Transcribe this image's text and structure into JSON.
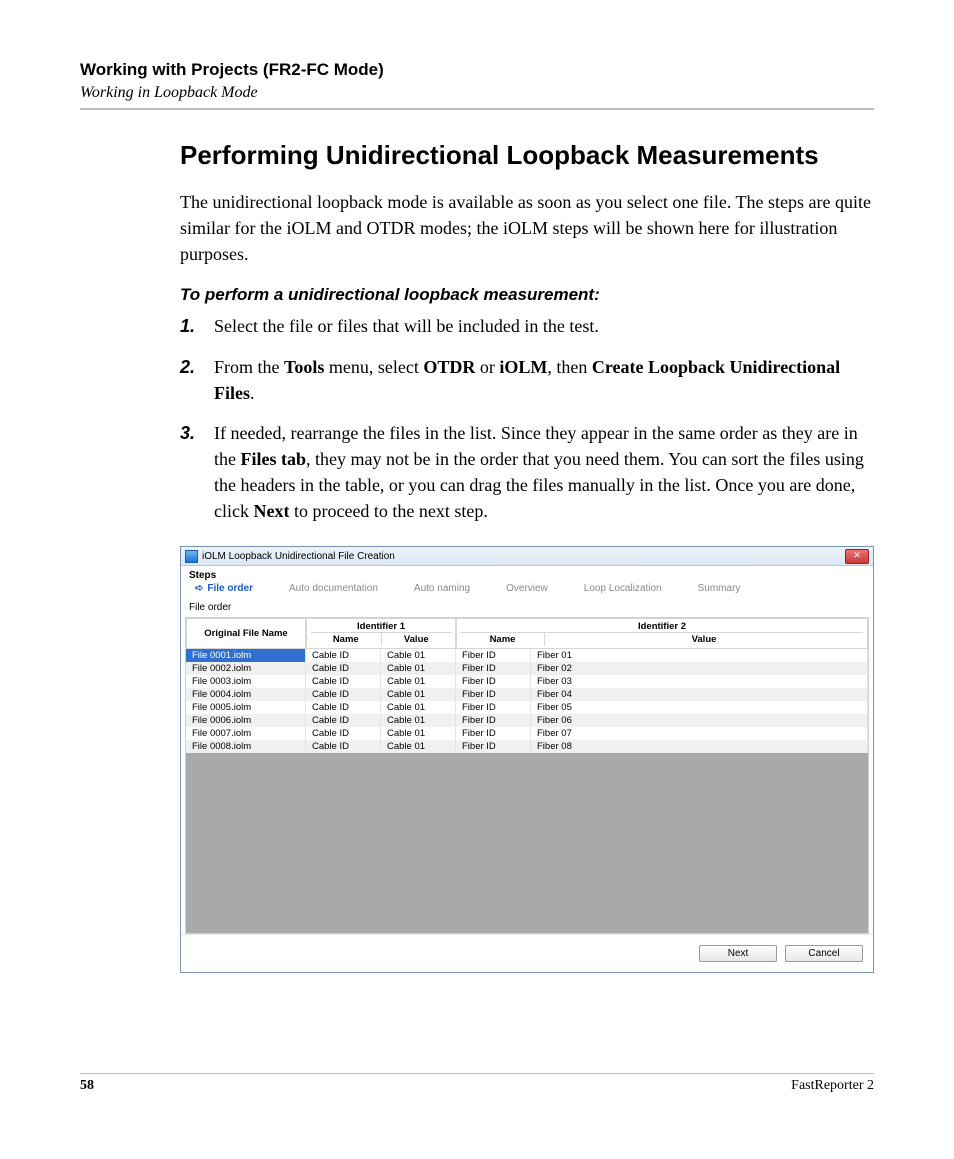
{
  "header": {
    "chapter": "Working with Projects (FR2-FC Mode)",
    "subsection": "Working in Loopback Mode"
  },
  "title": "Performing Unidirectional Loopback Measurements",
  "intro": "The unidirectional loopback mode is available as soon as you select one file. The steps are quite similar for the iOLM and OTDR modes; the iOLM steps will be shown here for illustration purposes.",
  "procedure_title": "To perform a unidirectional loopback measurement:",
  "steps": {
    "s1": {
      "num": "1.",
      "text": "Select the file or files that will be included in the test."
    },
    "s2": {
      "num": "2.",
      "pre": "From the ",
      "b1": "Tools",
      "mid1": " menu, select ",
      "b2": "OTDR",
      "mid2": " or ",
      "b3": "iOLM",
      "mid3": ", then ",
      "b4": "Create Loopback Unidirectional Files",
      "post": "."
    },
    "s3": {
      "num": "3.",
      "pre": "If needed, rearrange the files in the list. Since they appear in the same order as they are in the ",
      "b1": "Files tab",
      "mid1": ", they may not be in the order that you need them. You can sort the files using the headers in the table, or you can drag the files manually in the list. Once you are done, click ",
      "b2": "Next",
      "post": " to proceed to the next step."
    }
  },
  "dialog": {
    "title": "iOLM Loopback Unidirectional File Creation",
    "close_glyph": "✕",
    "steps_label": "Steps",
    "tabs": {
      "file_order": "File order",
      "auto_doc": "Auto documentation",
      "auto_naming": "Auto naming",
      "overview": "Overview",
      "loop_loc": "Loop Localization",
      "summary": "Summary"
    },
    "arrow": "➪",
    "file_order_label": "File order",
    "headers": {
      "original": "Original File Name",
      "id1": "Identifier 1",
      "id2": "Identifier 2",
      "name": "Name",
      "value": "Value"
    },
    "rows": [
      {
        "file": "File 0001.iolm",
        "n1": "Cable ID",
        "v1": "Cable 01",
        "n2": "Fiber ID",
        "v2": "Fiber 01"
      },
      {
        "file": "File 0002.iolm",
        "n1": "Cable ID",
        "v1": "Cable 01",
        "n2": "Fiber ID",
        "v2": "Fiber 02"
      },
      {
        "file": "File 0003.iolm",
        "n1": "Cable ID",
        "v1": "Cable 01",
        "n2": "Fiber ID",
        "v2": "Fiber 03"
      },
      {
        "file": "File 0004.iolm",
        "n1": "Cable ID",
        "v1": "Cable 01",
        "n2": "Fiber ID",
        "v2": "Fiber 04"
      },
      {
        "file": "File 0005.iolm",
        "n1": "Cable ID",
        "v1": "Cable 01",
        "n2": "Fiber ID",
        "v2": "Fiber 05"
      },
      {
        "file": "File 0006.iolm",
        "n1": "Cable ID",
        "v1": "Cable 01",
        "n2": "Fiber ID",
        "v2": "Fiber 06"
      },
      {
        "file": "File 0007.iolm",
        "n1": "Cable ID",
        "v1": "Cable 01",
        "n2": "Fiber ID",
        "v2": "Fiber 07"
      },
      {
        "file": "File 0008.iolm",
        "n1": "Cable ID",
        "v1": "Cable 01",
        "n2": "Fiber ID",
        "v2": "Fiber 08"
      }
    ],
    "buttons": {
      "next": "Next",
      "cancel": "Cancel"
    }
  },
  "footer": {
    "page": "58",
    "product": "FastReporter 2"
  },
  "colors": {
    "row_odd": "#f0f0f0",
    "row_even": "#ffffff",
    "row_selected_bg": "#2f6fd0",
    "row_selected_fg": "#ffffff"
  }
}
